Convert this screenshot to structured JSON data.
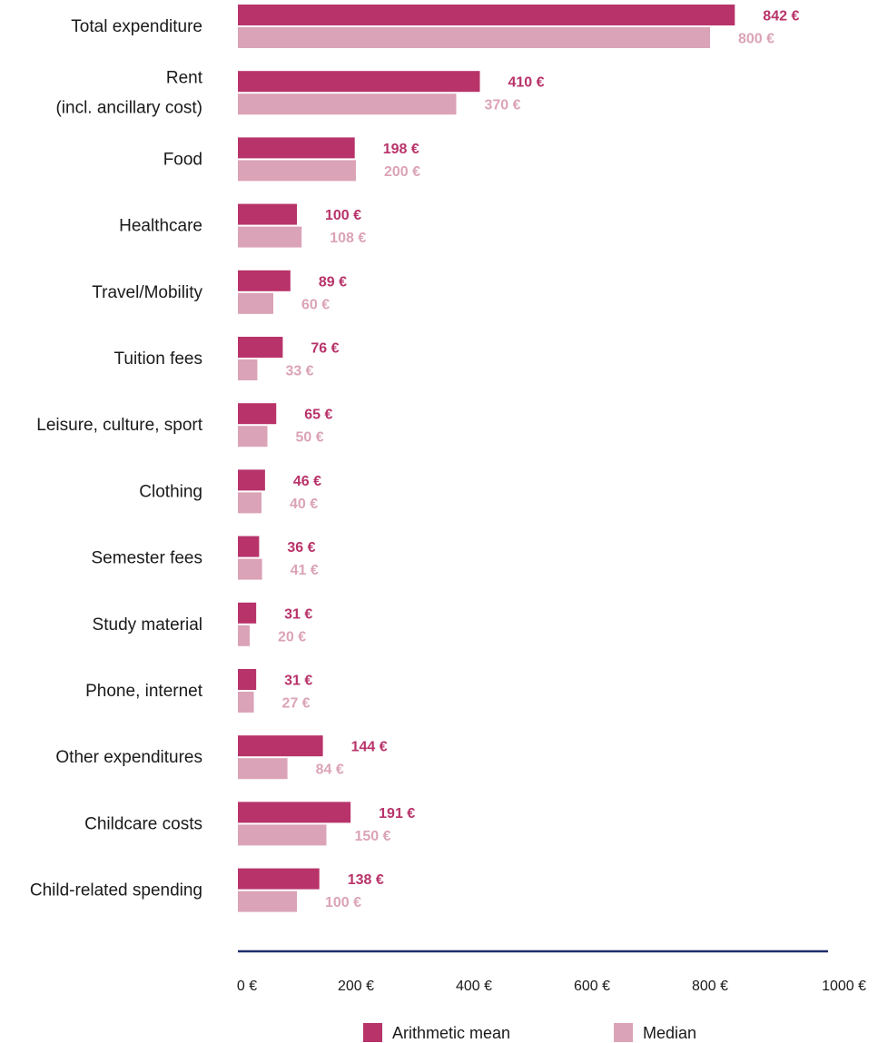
{
  "chart_data": {
    "type": "bar",
    "orientation": "horizontal",
    "categories": [
      [
        "Total expenditure"
      ],
      [
        "Rent",
        "(incl. ancillary cost)"
      ],
      [
        "Food"
      ],
      [
        "Healthcare"
      ],
      [
        "Travel/Mobility"
      ],
      [
        "Tuition fees"
      ],
      [
        "Leisure, culture, sport"
      ],
      [
        "Clothing"
      ],
      [
        "Semester fees"
      ],
      [
        "Study material"
      ],
      [
        "Phone, internet"
      ],
      [
        "Other expenditures"
      ],
      [
        "Childcare costs"
      ],
      [
        "Child-related spending"
      ]
    ],
    "series": [
      {
        "name": "Arithmetic mean",
        "color": "#b8336a",
        "values": [
          842,
          410,
          198,
          100,
          89,
          76,
          65,
          46,
          36,
          31,
          31,
          144,
          191,
          138
        ],
        "labels": [
          "842 €",
          "410 €",
          "198 €",
          "100 €",
          "89 €",
          "76 €",
          "65 €",
          "46 €",
          "36 €",
          "31 €",
          "31 €",
          "144 €",
          "191 €",
          "138 €"
        ]
      },
      {
        "name": "Median",
        "color": "#dba3b7",
        "values": [
          800,
          370,
          200,
          108,
          60,
          33,
          50,
          40,
          41,
          20,
          27,
          84,
          150,
          100
        ],
        "labels": [
          "800 €",
          "370 €",
          "200 €",
          "108 €",
          "60 €",
          "33 €",
          "50 €",
          "40 €",
          "41 €",
          "20 €",
          "27 €",
          "84 €",
          "150 €",
          "100 €"
        ]
      }
    ],
    "xlim": [
      0,
      1000
    ],
    "xticks": [
      0,
      200,
      400,
      600,
      800,
      1000
    ],
    "xtick_labels": [
      "0 €",
      "200 €",
      "400 €",
      "600 €",
      "800 €",
      "1000 €"
    ],
    "axis_color": "#1f2d6b",
    "grid": false,
    "legend_position": "bottom-center"
  }
}
